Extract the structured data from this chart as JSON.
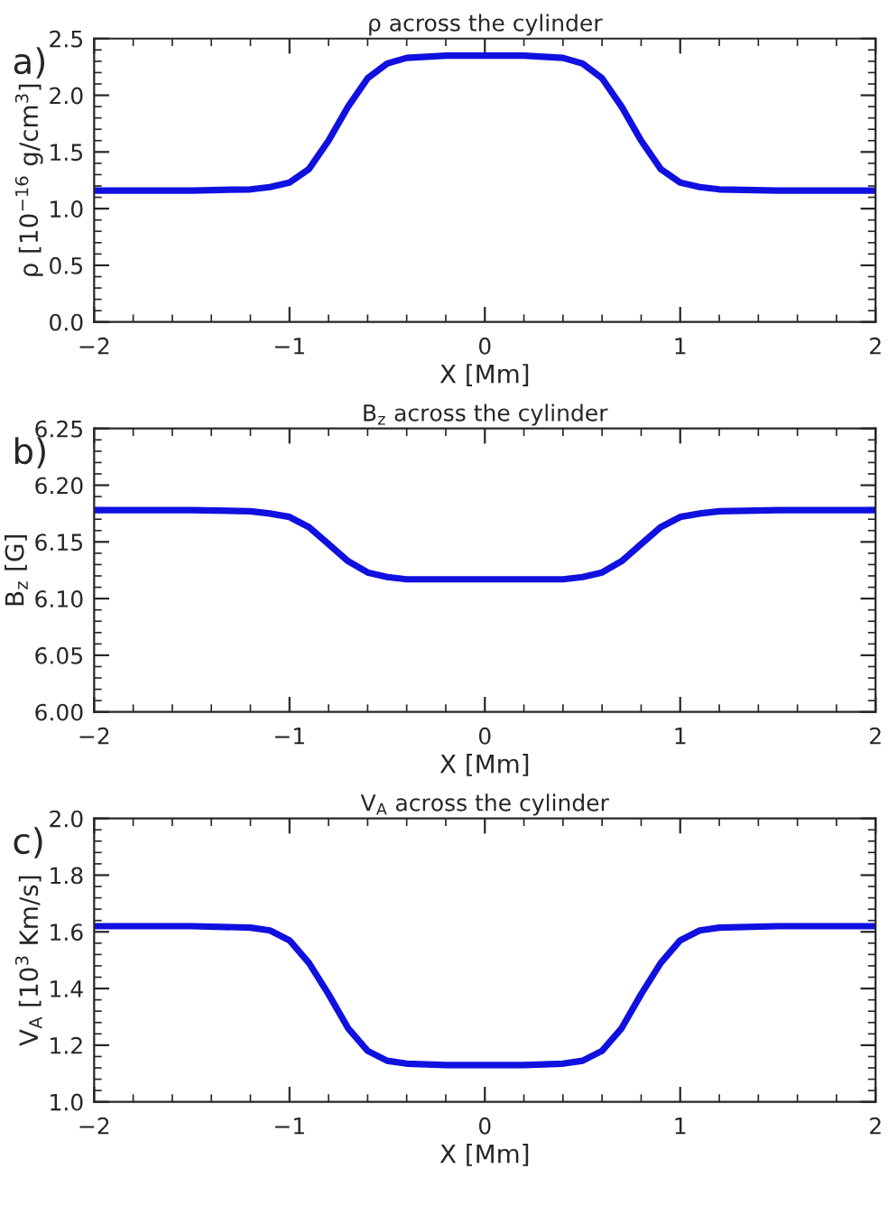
{
  "chart_data": [
    {
      "type": "line",
      "title": "ρ across the cylinder",
      "xlabel": "X [Mm]",
      "ylabel": "ρ [10$^{−16}$ g/cm$^{3}$]",
      "annotations": [
        "a)"
      ],
      "xlim": [
        -2,
        2
      ],
      "xticks": [
        -2,
        -1,
        0,
        1,
        2
      ],
      "ylim": [
        0,
        2.5
      ],
      "yticks": [
        {
          "value": 0,
          "label": "0.0"
        },
        0.5,
        {
          "value": 1,
          "label": "1.0"
        },
        1.5,
        {
          "value": 2,
          "label": "2.0"
        },
        2.5
      ],
      "grid": false,
      "legend": false,
      "marker": "none",
      "line_style": "solid",
      "series": [
        {
          "color": "#1010e0",
          "x": [
            -2,
            -1.5,
            -1.2,
            -1.1,
            -1.0,
            -0.9,
            -0.8,
            -0.7,
            -0.6,
            -0.5,
            -0.4,
            -0.3,
            -0.2,
            0,
            0.2,
            0.3,
            0.4,
            0.5,
            0.6,
            0.7,
            0.8,
            0.9,
            1.0,
            1.1,
            1.2,
            1.5,
            2
          ],
          "values": [
            1.16,
            1.16,
            1.17,
            1.19,
            1.23,
            1.35,
            1.6,
            1.9,
            2.15,
            2.28,
            2.33,
            2.34,
            2.35,
            2.35,
            2.35,
            2.34,
            2.33,
            2.28,
            2.15,
            1.9,
            1.6,
            1.35,
            1.23,
            1.19,
            1.17,
            1.16,
            1.16
          ]
        }
      ]
    },
    {
      "type": "line",
      "title": "B$_{z}$ across the cylinder",
      "xlabel": "X [Mm]",
      "ylabel": "B$_{z}$ [G]",
      "annotations": [
        "b)"
      ],
      "xlim": [
        -2,
        2
      ],
      "xticks": [
        -2,
        -1,
        0,
        1,
        2
      ],
      "ylim": [
        6.0,
        6.25
      ],
      "yticks": [
        {
          "value": 6.0,
          "label": "6.00"
        },
        6.05,
        {
          "value": 6.1,
          "label": "6.10"
        },
        6.15,
        {
          "value": 6.2,
          "label": "6.20"
        },
        6.25
      ],
      "grid": false,
      "legend": false,
      "marker": "none",
      "line_style": "solid",
      "series": [
        {
          "color": "#1010e0",
          "x": [
            -2,
            -1.5,
            -1.2,
            -1.1,
            -1.0,
            -0.9,
            -0.8,
            -0.7,
            -0.6,
            -0.5,
            -0.4,
            -0.3,
            0,
            0.3,
            0.4,
            0.5,
            0.6,
            0.7,
            0.8,
            0.9,
            1.0,
            1.1,
            1.2,
            1.5,
            2
          ],
          "values": [
            6.178,
            6.178,
            6.177,
            6.175,
            6.172,
            6.163,
            6.148,
            6.133,
            6.123,
            6.119,
            6.117,
            6.117,
            6.117,
            6.117,
            6.117,
            6.119,
            6.123,
            6.133,
            6.148,
            6.163,
            6.172,
            6.175,
            6.177,
            6.178,
            6.178
          ]
        }
      ]
    },
    {
      "type": "line",
      "title": "V$_{A}$ across the cylinder",
      "xlabel": "X [Mm]",
      "ylabel": "V$_{A}$ [10$^{3}$ Km/s]",
      "annotations": [
        "c)"
      ],
      "xlim": [
        -2,
        2
      ],
      "xticks": [
        -2,
        -1,
        0,
        1,
        2
      ],
      "ylim": [
        1.0,
        2.0
      ],
      "yticks": [
        {
          "value": 1.0,
          "label": "1.0"
        },
        1.2,
        1.4,
        1.6,
        1.8,
        {
          "value": 2.0,
          "label": "2.0"
        }
      ],
      "grid": false,
      "legend": false,
      "marker": "none",
      "line_style": "solid",
      "series": [
        {
          "color": "#1010e0",
          "x": [
            -2,
            -1.5,
            -1.2,
            -1.1,
            -1.0,
            -0.9,
            -0.8,
            -0.7,
            -0.6,
            -0.5,
            -0.4,
            -0.2,
            0,
            0.2,
            0.4,
            0.5,
            0.6,
            0.7,
            0.8,
            0.9,
            1.0,
            1.1,
            1.2,
            1.5,
            2
          ],
          "values": [
            1.62,
            1.62,
            1.615,
            1.605,
            1.57,
            1.49,
            1.38,
            1.26,
            1.18,
            1.145,
            1.135,
            1.13,
            1.13,
            1.13,
            1.135,
            1.145,
            1.18,
            1.26,
            1.38,
            1.49,
            1.57,
            1.605,
            1.615,
            1.62,
            1.62
          ]
        }
      ]
    }
  ]
}
